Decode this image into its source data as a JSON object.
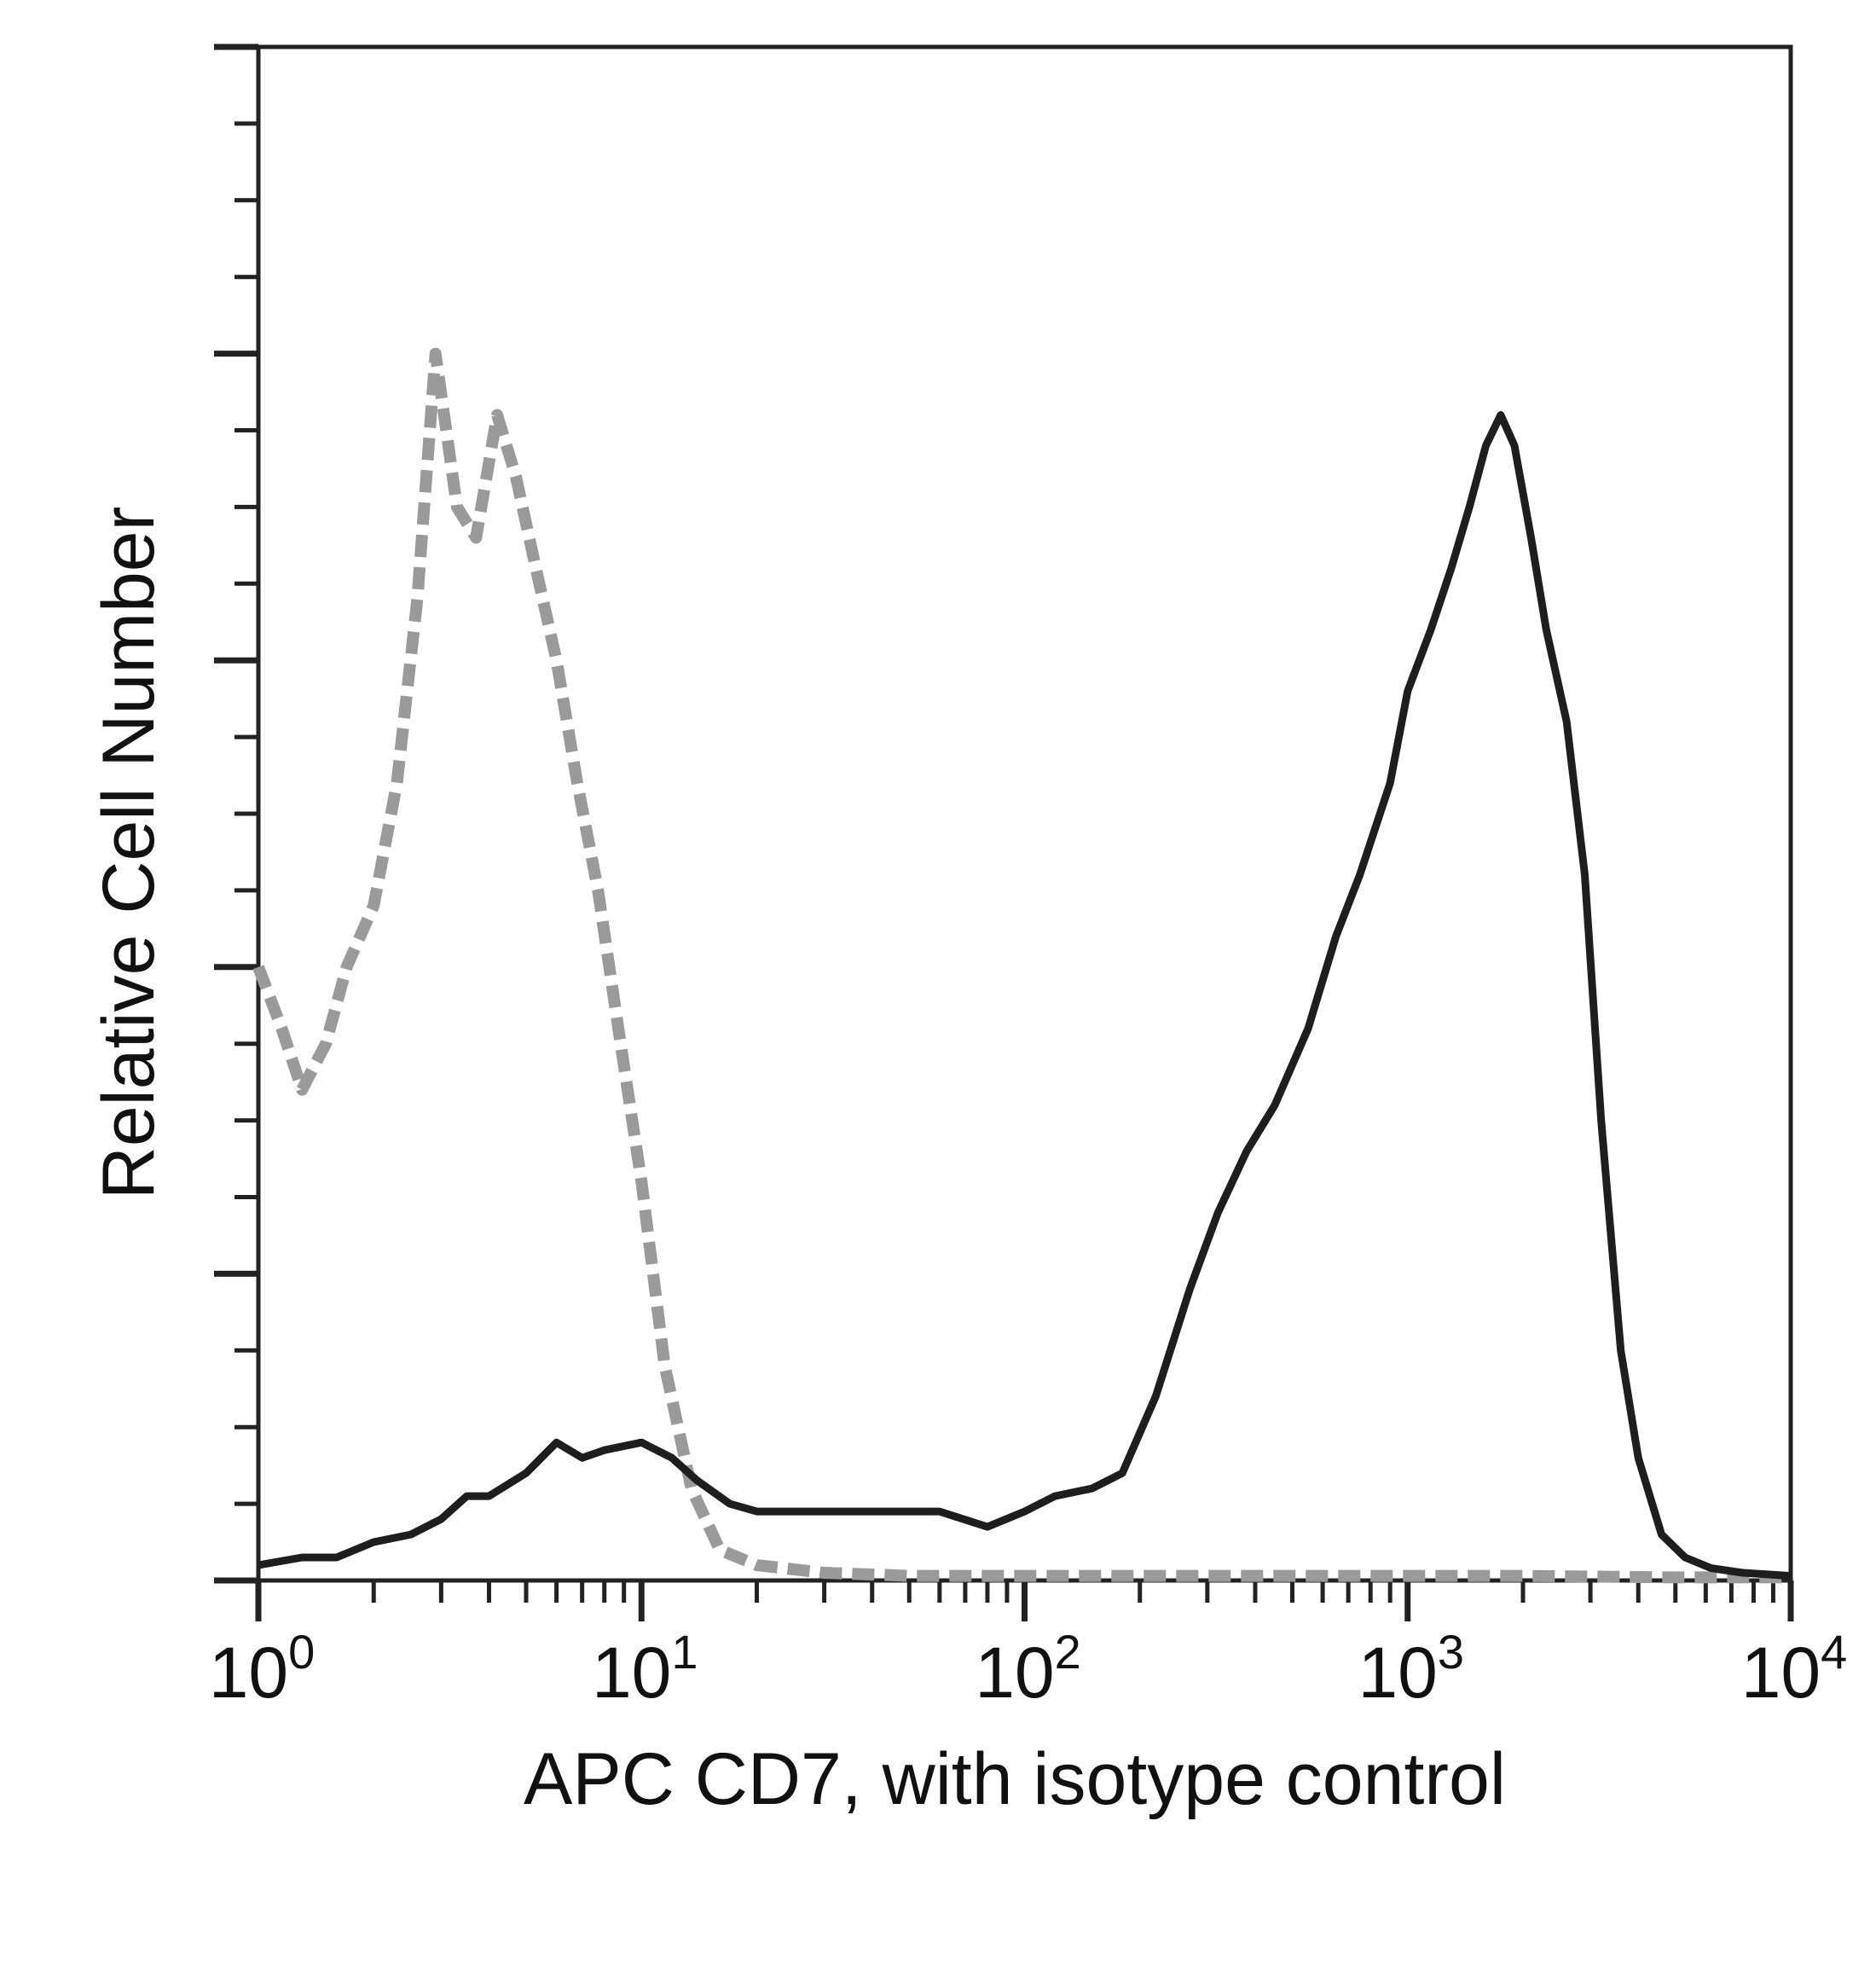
{
  "chart_data": {
    "type": "line",
    "xlabel": "APC CD7, with isotype control",
    "ylabel": "Relative Cell Number",
    "x_scale": "log",
    "xlim": [
      1,
      10000
    ],
    "ylim": [
      0,
      100
    ],
    "grid": false,
    "legend": "none",
    "x_ticks": [
      {
        "value": 1,
        "base": "10",
        "exp": "0"
      },
      {
        "value": 10,
        "base": "10",
        "exp": "1"
      },
      {
        "value": 100,
        "base": "10",
        "exp": "2"
      },
      {
        "value": 1000,
        "base": "10",
        "exp": "3"
      },
      {
        "value": 10000,
        "base": "10",
        "exp": "4"
      }
    ],
    "series": [
      {
        "role": "isotype-control",
        "color": "#9a9a9a",
        "dashed": true,
        "x": [
          1.0,
          1.15,
          1.3,
          1.5,
          1.7,
          2.0,
          2.3,
          2.6,
          2.9,
          3.3,
          3.7,
          4.2,
          4.7,
          5.3,
          6.0,
          6.8,
          7.7,
          8.7,
          10.0,
          11.5,
          13.5,
          16.0,
          20.0,
          30.0,
          50.0,
          100.0,
          200.0,
          500.0,
          1000.0,
          2000.0,
          5000.0,
          10000.0
        ],
        "y": [
          40,
          36,
          32,
          35,
          40,
          44,
          52,
          64,
          80,
          70,
          68,
          76,
          72,
          66,
          60,
          52,
          45,
          36,
          26,
          14,
          6,
          2,
          1,
          0.5,
          0.3,
          0.3,
          0.3,
          0.3,
          0.3,
          0.3,
          0.2,
          0.2
        ]
      },
      {
        "role": "APC CD7",
        "color": "#1e1e1e",
        "dashed": false,
        "x": [
          1.0,
          1.3,
          1.6,
          2.0,
          2.5,
          3.0,
          3.5,
          4.0,
          5.0,
          6.0,
          7.0,
          8.0,
          10.0,
          12.0,
          14.0,
          17.0,
          20.0,
          25.0,
          30.0,
          40.0,
          50.0,
          60.0,
          80.0,
          100.0,
          120.0,
          150.0,
          180.0,
          220.0,
          270.0,
          320.0,
          380.0,
          450.0,
          550.0,
          650.0,
          750.0,
          900.0,
          1000.0,
          1150.0,
          1300.0,
          1450.0,
          1600.0,
          1750.0,
          1900.0,
          2100.0,
          2300.0,
          2600.0,
          2900.0,
          3200.0,
          3600.0,
          4000.0,
          4600.0,
          5300.0,
          6200.0,
          7500.0,
          10000.0
        ],
        "y": [
          1,
          1.5,
          1.5,
          2.5,
          3,
          4,
          5.5,
          5.5,
          7,
          9,
          8,
          8.5,
          9,
          8,
          6.5,
          5,
          4.5,
          4.5,
          4.5,
          4.5,
          4.5,
          4.5,
          3.5,
          4.5,
          5.5,
          6,
          7,
          12,
          19,
          24,
          28,
          31,
          36,
          42,
          46,
          52,
          58,
          62,
          66,
          70,
          74,
          76,
          74,
          68,
          62,
          56,
          46,
          30,
          15,
          8,
          3,
          1.5,
          0.8,
          0.5,
          0.3
        ]
      }
    ]
  }
}
